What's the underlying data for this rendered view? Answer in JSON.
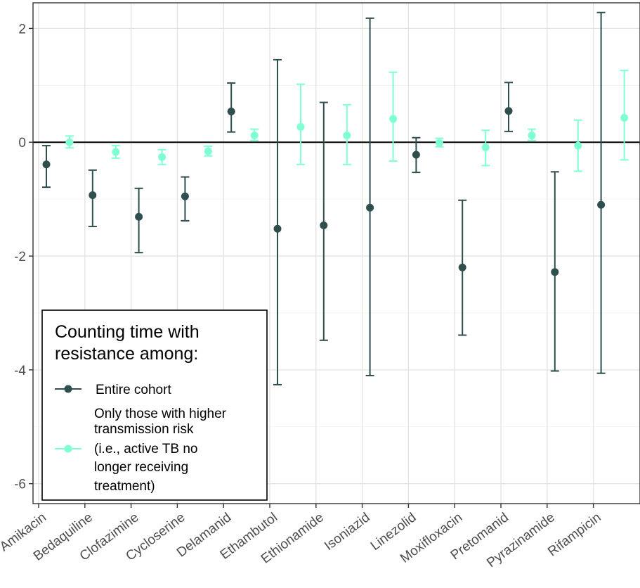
{
  "chart_data": {
    "type": "errorbar",
    "categories": [
      "Amikacin",
      "Bedaquiline",
      "Clofazimine",
      "Cycloserine",
      "Delamanid",
      "Ethambutol",
      "Ethionamide",
      "Isoniazid",
      "Linezolid",
      "Moxifloxacin",
      "Pretomanid",
      "Pyrazinamide",
      "Rifampicin"
    ],
    "y_ticks": [
      "2",
      "0",
      "-2",
      "-4",
      "-6"
    ],
    "y_tick_values": [
      2,
      0,
      -2,
      -4,
      -6
    ],
    "ylim": [
      -6.35,
      2.45
    ],
    "reference_line": 0,
    "grid": true,
    "legend": {
      "title_line1": "Counting time with",
      "title_line2": "resistance among:",
      "placement": "bottom-left",
      "entries": [
        {
          "lines": [
            "Entire cohort"
          ]
        },
        {
          "lines": [
            "Only those with higher",
            "transmission risk",
            "(i.e., active TB no",
            "longer receiving",
            "treatment)"
          ]
        }
      ]
    },
    "series": [
      {
        "name": "Entire cohort",
        "color": "#2f4f4f",
        "estimate": [
          -0.39,
          -0.93,
          -1.31,
          -0.95,
          0.54,
          -1.52,
          -1.46,
          -1.15,
          -0.22,
          -2.2,
          0.55,
          -2.28,
          -1.1
        ],
        "lower": [
          -0.79,
          -1.48,
          -1.94,
          -1.38,
          0.18,
          -4.26,
          -3.48,
          -4.1,
          -0.53,
          -3.39,
          0.19,
          -4.02,
          -4.06
        ],
        "upper": [
          -0.06,
          -0.49,
          -0.81,
          -0.61,
          1.04,
          1.45,
          0.7,
          2.18,
          0.08,
          -1.02,
          1.05,
          -0.52,
          2.28
        ]
      },
      {
        "name": "Only those with higher transmission risk (i.e., active TB no longer receiving treatment)",
        "color": "#7fffd4",
        "estimate": [
          0.0,
          -0.17,
          -0.26,
          -0.16,
          0.12,
          0.27,
          0.12,
          0.41,
          -0.01,
          -0.09,
          0.12,
          -0.06,
          0.43
        ],
        "lower": [
          -0.1,
          -0.28,
          -0.39,
          -0.24,
          0.03,
          -0.39,
          -0.39,
          -0.33,
          -0.08,
          -0.41,
          0.03,
          -0.51,
          -0.31
        ],
        "upper": [
          0.11,
          -0.06,
          -0.13,
          -0.07,
          0.23,
          1.02,
          0.66,
          1.23,
          0.07,
          0.21,
          0.23,
          0.39,
          1.26
        ]
      }
    ]
  }
}
